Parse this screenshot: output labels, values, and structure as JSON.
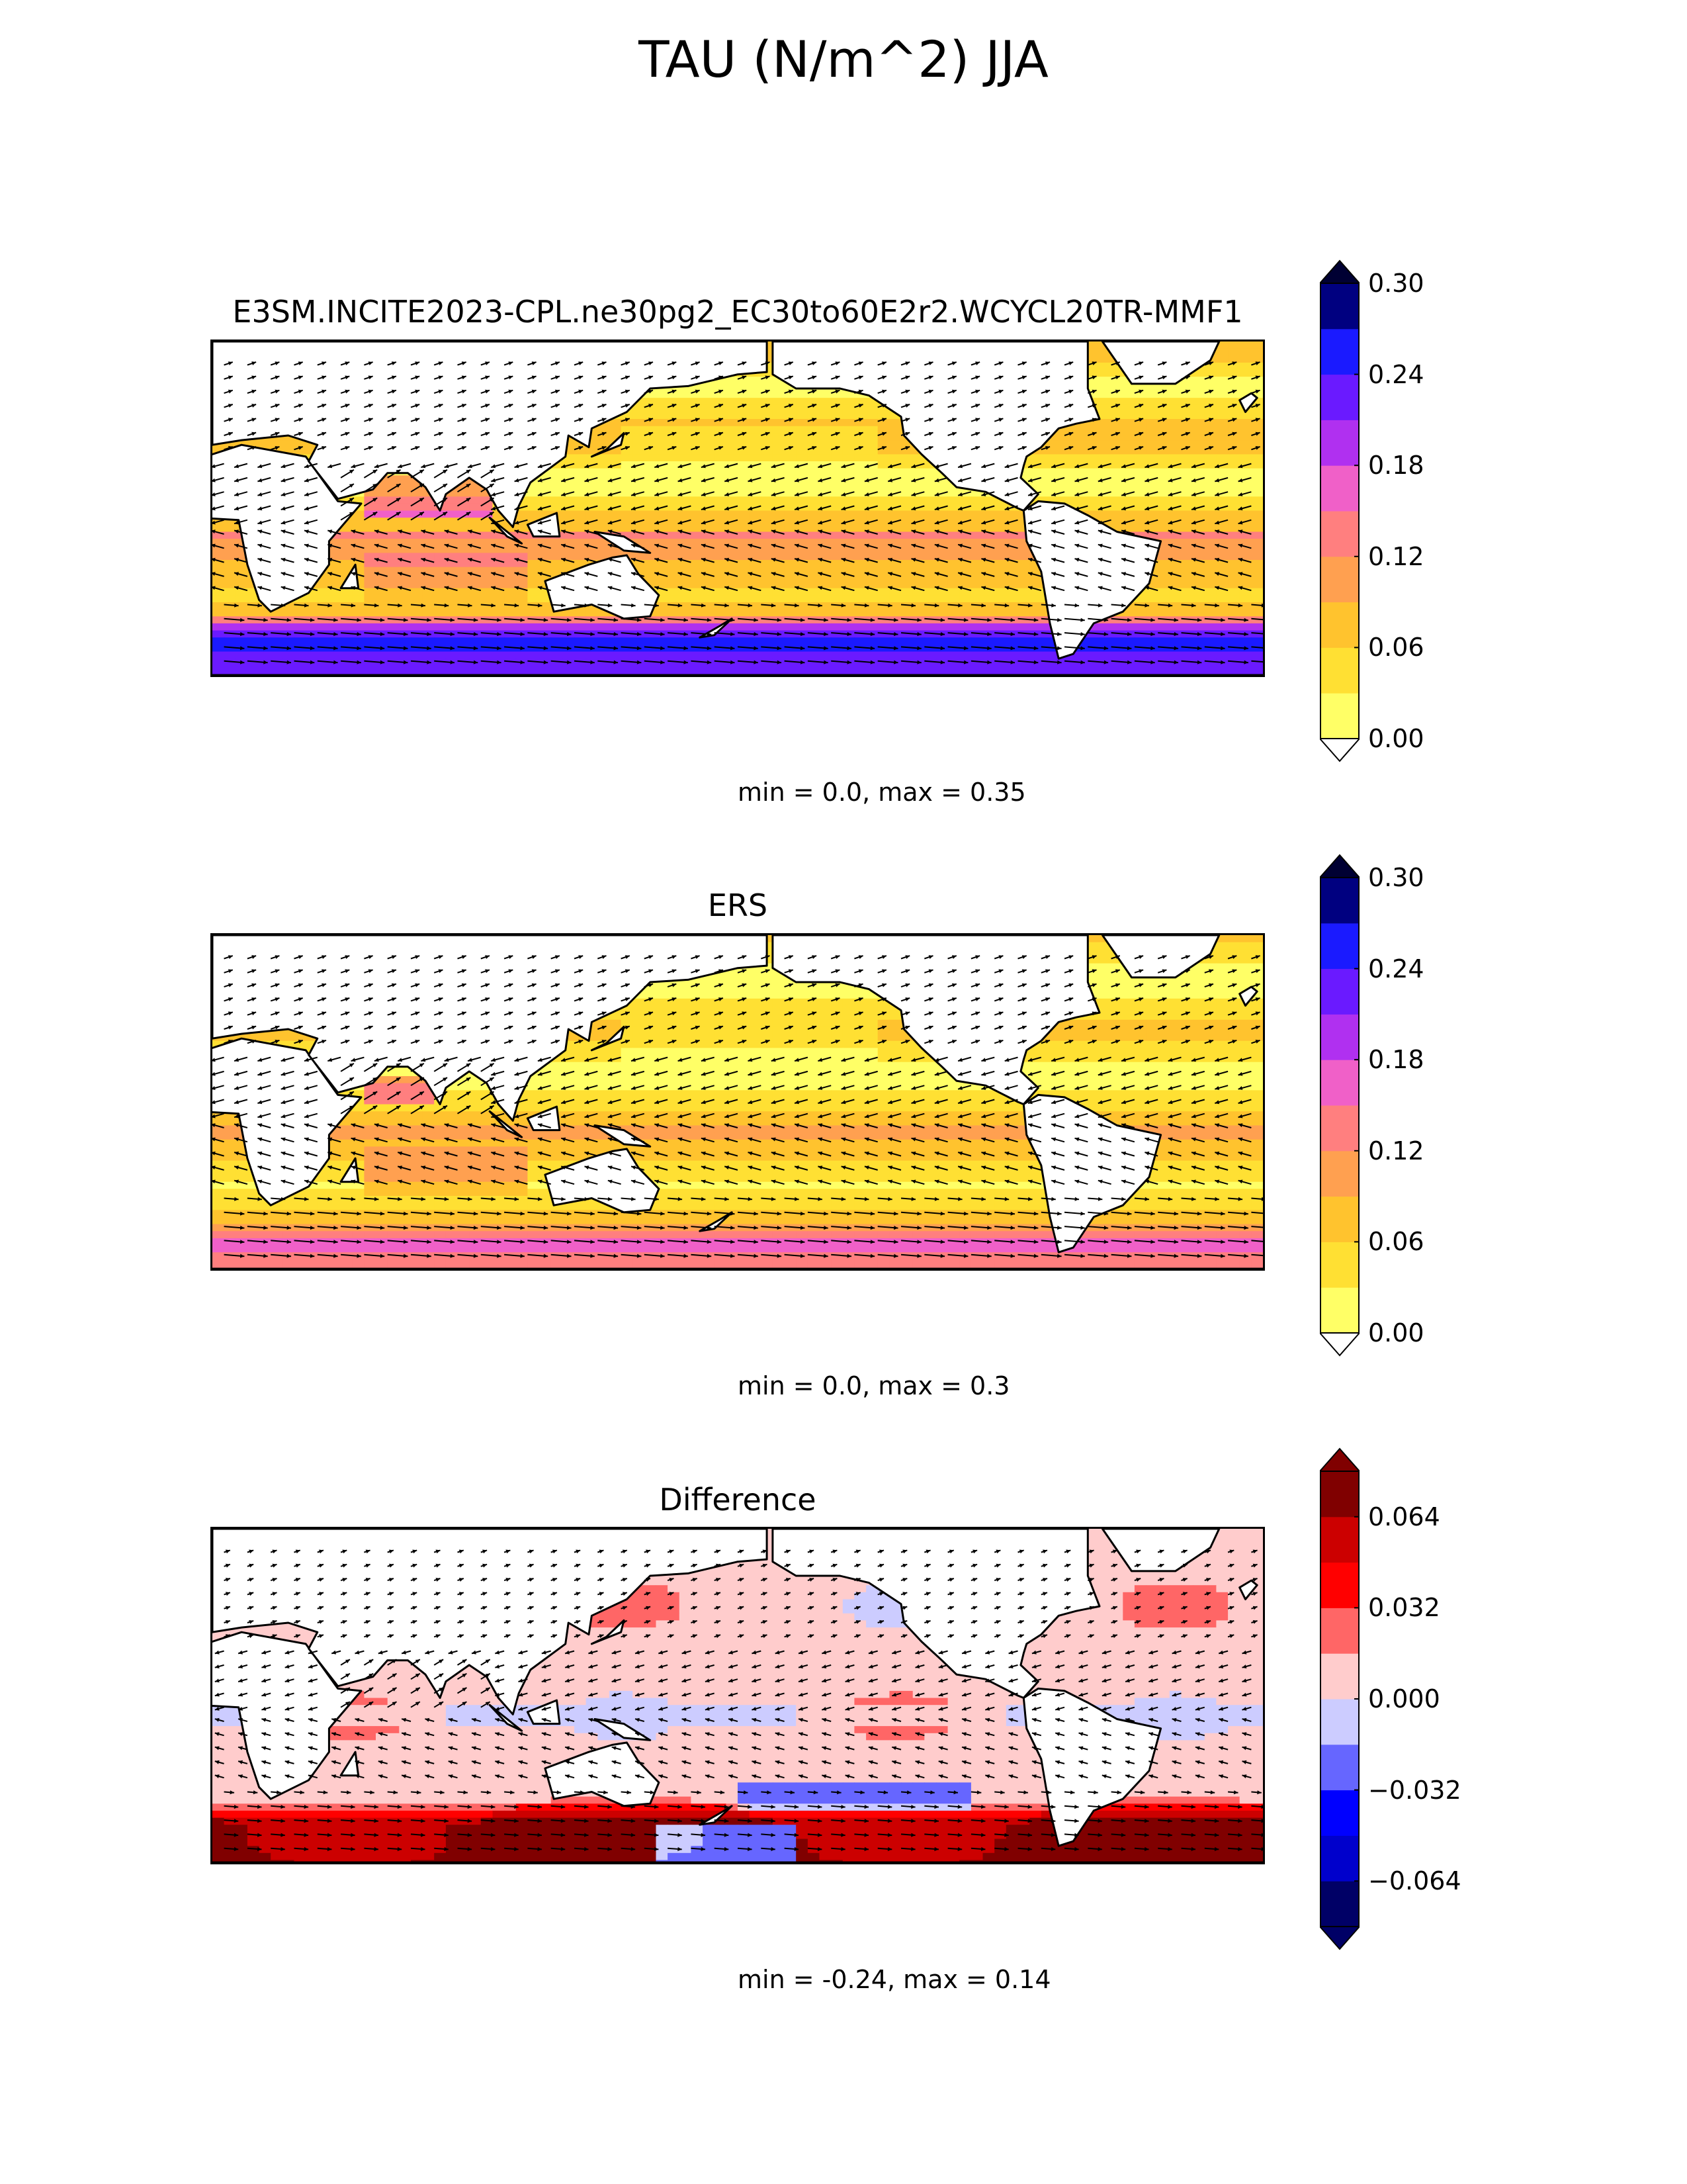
{
  "figure": {
    "title": "TAU (N/m^2) JJA"
  },
  "chart_data": [
    {
      "type": "heatmap",
      "title": "E3SM.INCITE2023-CPL.ne30pg2_EC30to60E2r2.WCYCL20TR-MMF1",
      "stats": "min = 0.0, max = 0.35",
      "field": "model",
      "colorbar": {
        "levels": [
          0.0,
          0.03,
          0.06,
          0.09,
          0.12,
          0.15,
          0.18,
          0.21,
          0.24,
          0.27,
          0.3
        ],
        "colors": [
          "#ffff66",
          "#ffe033",
          "#ffc32e",
          "#ffa050",
          "#ff7f7f",
          "#f060c8",
          "#b030f0",
          "#6a1aff",
          "#1a1aff",
          "#000080",
          "#000033"
        ],
        "extend_low_color": "#ffffff",
        "extend_high_color": "#000033",
        "tick_labels": [
          "0.30",
          "0.24",
          "0.18",
          "0.12",
          "0.06",
          "0.00"
        ],
        "tick_values": [
          0.3,
          0.24,
          0.18,
          0.12,
          0.06,
          0.0
        ]
      },
      "max_value": 0.35,
      "min_value": 0.0
    },
    {
      "type": "heatmap",
      "title": "ERS",
      "stats": "min = 0.0, max = 0.3",
      "field": "obs",
      "colorbar": {
        "levels": [
          0.0,
          0.03,
          0.06,
          0.09,
          0.12,
          0.15,
          0.18,
          0.21,
          0.24,
          0.27,
          0.3
        ],
        "colors": [
          "#ffff66",
          "#ffe033",
          "#ffc32e",
          "#ffa050",
          "#ff7f7f",
          "#f060c8",
          "#b030f0",
          "#6a1aff",
          "#1a1aff",
          "#000080",
          "#000033"
        ],
        "extend_low_color": "#ffffff",
        "extend_high_color": "#000033",
        "tick_labels": [
          "0.30",
          "0.24",
          "0.18",
          "0.12",
          "0.06",
          "0.00"
        ],
        "tick_values": [
          0.3,
          0.24,
          0.18,
          0.12,
          0.06,
          0.0
        ]
      },
      "max_value": 0.3,
      "min_value": 0.0
    },
    {
      "type": "heatmap",
      "title": "Difference",
      "stats": "min = -0.24, max = 0.14",
      "field": "diff",
      "colorbar": {
        "levels": [
          -0.08,
          -0.064,
          -0.048,
          -0.032,
          -0.016,
          0.0,
          0.016,
          0.032,
          0.048,
          0.064,
          0.08
        ],
        "colors": [
          "#000066",
          "#0000cc",
          "#0000ff",
          "#6666ff",
          "#ccccff",
          "#ffcccc",
          "#ff6666",
          "#ff0000",
          "#cc0000",
          "#800000"
        ],
        "extend_low_color": "#000066",
        "extend_high_color": "#800000",
        "tick_labels": [
          "0.064",
          "0.032",
          "0.000",
          "−0.032",
          "−0.064"
        ],
        "tick_values": [
          0.064,
          0.032,
          0.0,
          -0.032,
          -0.064
        ]
      },
      "max_value": 0.14,
      "min_value": -0.24
    }
  ]
}
